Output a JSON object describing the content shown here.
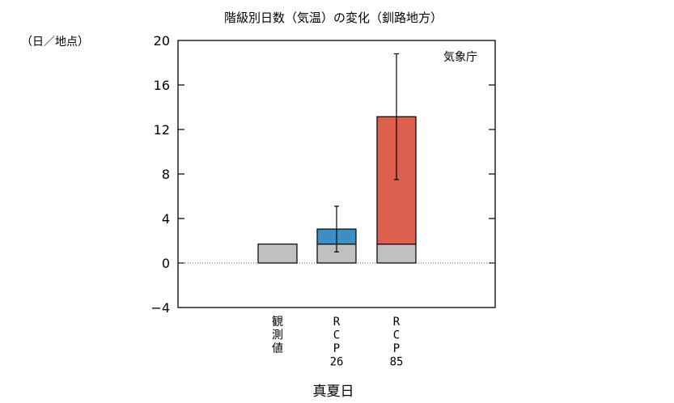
{
  "chart_data": {
    "type": "bar",
    "title": "階級別日数（気温）の変化（釧路地方）",
    "ylabel": "（日／地点）",
    "xlabel": "真夏日",
    "source": "気象庁",
    "ylim": [
      -4,
      20
    ],
    "yticks": [
      -4,
      0,
      4,
      8,
      12,
      16,
      20
    ],
    "ytick_labels": [
      "−4",
      "0",
      "4",
      "8",
      "12",
      "16",
      "20"
    ],
    "zero_line": "dotted",
    "categories": [
      {
        "label_lines": [
          "観",
          "測",
          "値"
        ]
      },
      {
        "label_lines": [
          "R",
          "C",
          "P",
          "26"
        ]
      },
      {
        "label_lines": [
          "R",
          "C",
          "P",
          "85"
        ]
      }
    ],
    "series": [
      {
        "role": "observed",
        "values": [
          1.7,
          1.7,
          1.7
        ],
        "color": "#c0c0c0"
      },
      {
        "role": "change",
        "values": [
          0,
          1.35,
          11.45
        ],
        "colors": [
          "#c0c0c0",
          "#3e8ec4",
          "#dc604d"
        ]
      }
    ],
    "totals": [
      1.7,
      3.05,
      13.15
    ],
    "error_bars": [
      null,
      [
        1.0,
        5.1
      ],
      [
        7.5,
        18.8
      ]
    ]
  }
}
